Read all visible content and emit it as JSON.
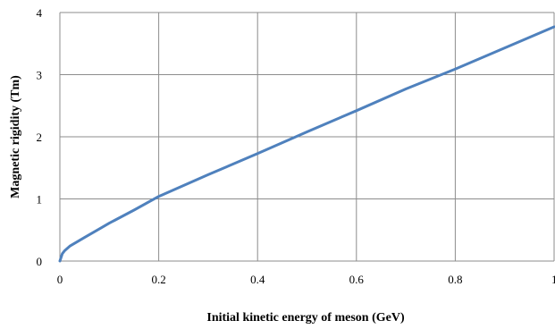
{
  "chart_data": {
    "type": "line",
    "title": "",
    "xlabel": "Initial kinetic energy of meson (GeV)",
    "ylabel": "Magnetic rigidity (Tm)",
    "xlim": [
      0,
      1
    ],
    "ylim": [
      0,
      4
    ],
    "x_ticks": [
      "0",
      "0.2",
      "0.4",
      "0.6",
      "0.8",
      "1"
    ],
    "y_ticks": [
      "0",
      "1",
      "2",
      "3",
      "4"
    ],
    "grid": true,
    "legend": "none",
    "series": [
      {
        "color": "#4f81bd",
        "x": [
          0,
          0.005,
          0.01,
          0.02,
          0.05,
          0.1,
          0.15,
          0.2,
          0.3,
          0.4,
          0.5,
          0.6,
          0.7,
          0.8,
          0.9,
          1.0
        ],
        "y": [
          0,
          0.12,
          0.17,
          0.24,
          0.38,
          0.61,
          0.82,
          1.04,
          1.39,
          1.73,
          2.08,
          2.42,
          2.77,
          3.09,
          3.43,
          3.77
        ]
      }
    ]
  }
}
